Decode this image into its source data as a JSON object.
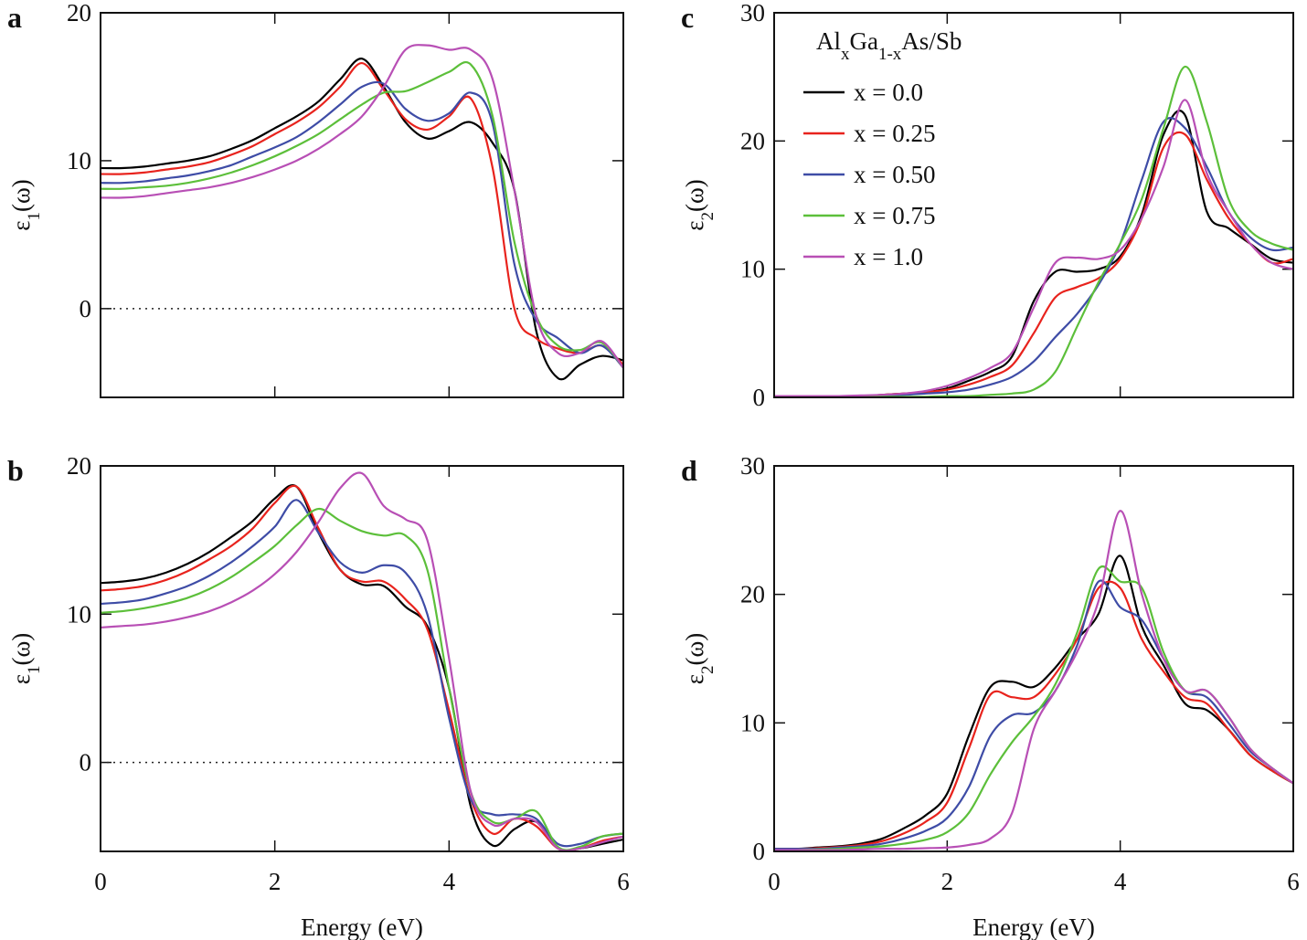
{
  "chart_data": [
    {
      "type": "line",
      "panel": "a",
      "y_label": [
        "ε",
        "1",
        "(ω)"
      ],
      "x": [
        0,
        0.25,
        0.5,
        0.75,
        1,
        1.25,
        1.5,
        1.75,
        2,
        2.25,
        2.5,
        2.75,
        3,
        3.25,
        3.5,
        3.75,
        4,
        4.25,
        4.5,
        4.75,
        5,
        5.25,
        5.5,
        5.75,
        6
      ],
      "xlim": [
        0,
        6
      ],
      "xticks": [
        0,
        2,
        4,
        6
      ],
      "xtick_labels": false,
      "ylim": [
        -6,
        20
      ],
      "yticks": [
        0,
        10,
        20
      ],
      "zero_line": true,
      "legend": false,
      "series": [
        {
          "name": "x = 0.0",
          "color": "#000000",
          "values": [
            9.5,
            9.5,
            9.6,
            9.8,
            10.0,
            10.3,
            10.8,
            11.4,
            12.2,
            13.0,
            14.0,
            15.5,
            16.9,
            15.0,
            12.6,
            11.5,
            12.0,
            12.6,
            11.2,
            8.0,
            -1.5,
            -4.7,
            -3.8,
            -3.2,
            -3.5
          ]
        },
        {
          "name": "x = 0.25",
          "color": "#e8231d",
          "values": [
            9.1,
            9.1,
            9.2,
            9.4,
            9.6,
            9.9,
            10.4,
            11.0,
            11.8,
            12.6,
            13.6,
            15.0,
            16.6,
            14.8,
            12.8,
            12.1,
            13.0,
            14.2,
            9.5,
            0.0,
            -2.0,
            -2.7,
            -3.0,
            -2.5,
            -3.8
          ]
        },
        {
          "name": "x = 0.50",
          "color": "#3e4ca6",
          "values": [
            8.5,
            8.5,
            8.6,
            8.8,
            9.0,
            9.3,
            9.7,
            10.3,
            10.9,
            11.6,
            12.6,
            13.8,
            15.0,
            15.2,
            13.5,
            12.7,
            13.2,
            14.6,
            12.5,
            3.0,
            -0.8,
            -2.0,
            -3.0,
            -2.5,
            -4.0
          ]
        },
        {
          "name": "x = 0.75",
          "color": "#5cbf3a",
          "values": [
            8.1,
            8.1,
            8.2,
            8.3,
            8.5,
            8.8,
            9.2,
            9.7,
            10.3,
            11.0,
            11.8,
            12.8,
            13.8,
            14.6,
            14.7,
            15.3,
            16.0,
            16.5,
            13.0,
            4.5,
            -0.5,
            -2.5,
            -2.8,
            -2.3,
            -4.0
          ]
        },
        {
          "name": "x = 1.0",
          "color": "#b84fb5",
          "values": [
            7.5,
            7.5,
            7.6,
            7.8,
            8.0,
            8.2,
            8.5,
            8.9,
            9.4,
            10.0,
            10.8,
            11.8,
            13.0,
            15.0,
            17.5,
            17.8,
            17.5,
            17.5,
            15.5,
            8.0,
            -0.5,
            -3.0,
            -3.0,
            -2.2,
            -4.0
          ]
        }
      ]
    },
    {
      "type": "line",
      "panel": "b",
      "y_label": [
        "ε",
        "1",
        "(ω)"
      ],
      "x_label": "Energy (eV)",
      "x": [
        0,
        0.25,
        0.5,
        0.75,
        1,
        1.25,
        1.5,
        1.75,
        2,
        2.25,
        2.5,
        2.75,
        3,
        3.25,
        3.5,
        3.75,
        4,
        4.25,
        4.5,
        4.75,
        5,
        5.25,
        5.5,
        5.75,
        6
      ],
      "xlim": [
        0,
        6
      ],
      "xticks": [
        0,
        2,
        4,
        6
      ],
      "ylim": [
        -6,
        20
      ],
      "yticks": [
        0,
        10,
        20
      ],
      "zero_line": true,
      "legend": false,
      "series": [
        {
          "name": "x = 0.0",
          "color": "#000000",
          "values": [
            12.1,
            12.2,
            12.4,
            12.8,
            13.4,
            14.2,
            15.2,
            16.3,
            17.8,
            18.6,
            15.5,
            13.0,
            12.0,
            11.9,
            10.5,
            9.2,
            5.0,
            -3.0,
            -5.6,
            -4.5,
            -4.0,
            -5.8,
            -5.8,
            -5.5,
            -5.2
          ]
        },
        {
          "name": "x = 0.25",
          "color": "#e8231d",
          "values": [
            11.6,
            11.7,
            11.9,
            12.3,
            12.9,
            13.7,
            14.6,
            15.8,
            17.5,
            18.6,
            15.8,
            13.0,
            12.2,
            12.2,
            11.0,
            9.0,
            3.5,
            -2.5,
            -4.8,
            -3.8,
            -4.3,
            -5.8,
            -5.8,
            -5.3,
            -5.0
          ]
        },
        {
          "name": "x = 0.50",
          "color": "#3e4ca6",
          "values": [
            10.7,
            10.8,
            11.0,
            11.4,
            11.9,
            12.6,
            13.5,
            14.6,
            15.9,
            17.7,
            15.5,
            13.5,
            12.8,
            13.3,
            12.8,
            10.0,
            3.0,
            -2.5,
            -3.5,
            -3.5,
            -3.8,
            -5.5,
            -5.5,
            -5.0,
            -4.8
          ]
        },
        {
          "name": "x = 0.75",
          "color": "#5cbf3a",
          "values": [
            10.1,
            10.2,
            10.4,
            10.7,
            11.1,
            11.7,
            12.5,
            13.5,
            14.6,
            16.0,
            17.1,
            16.3,
            15.6,
            15.3,
            15.3,
            13.0,
            5.0,
            -2.0,
            -4.0,
            -3.8,
            -3.3,
            -5.7,
            -5.7,
            -5.0,
            -4.8
          ]
        },
        {
          "name": "x = 1.0",
          "color": "#b84fb5",
          "values": [
            9.1,
            9.2,
            9.3,
            9.5,
            9.8,
            10.2,
            10.8,
            11.6,
            12.7,
            14.2,
            16.2,
            18.5,
            19.5,
            17.3,
            16.4,
            15.0,
            7.0,
            -2.0,
            -4.2,
            -3.8,
            -4.0,
            -5.8,
            -5.8,
            -5.4,
            -5.0
          ]
        }
      ]
    },
    {
      "type": "line",
      "panel": "c",
      "y_label": [
        "ε",
        "2",
        "(ω)"
      ],
      "x": [
        0,
        0.25,
        0.5,
        0.75,
        1,
        1.25,
        1.5,
        1.75,
        2,
        2.25,
        2.5,
        2.75,
        3,
        3.25,
        3.5,
        3.75,
        4,
        4.25,
        4.5,
        4.75,
        5,
        5.25,
        5.5,
        5.75,
        6
      ],
      "xlim": [
        0,
        6
      ],
      "xticks": [
        0,
        2,
        4,
        6
      ],
      "xtick_labels": false,
      "ylim": [
        0,
        30
      ],
      "yticks": [
        0,
        10,
        20,
        30
      ],
      "legend": true,
      "legend_corner": "upper left",
      "legend_title": [
        "Al",
        "x",
        "Ga",
        "1-x",
        "As/Sb"
      ],
      "series": [
        {
          "name": "x = 0.0",
          "color": "#000000",
          "values": [
            0.1,
            0.1,
            0.1,
            0.1,
            0.1,
            0.2,
            0.3,
            0.4,
            0.7,
            1.3,
            2.0,
            3.2,
            7.5,
            9.8,
            9.8,
            10.0,
            11.0,
            14.3,
            20.5,
            22.0,
            14.5,
            13.2,
            12.0,
            10.8,
            10.5
          ]
        },
        {
          "name": "x = 0.25",
          "color": "#e8231d",
          "values": [
            0.1,
            0.1,
            0.1,
            0.1,
            0.1,
            0.2,
            0.3,
            0.4,
            0.6,
            1.0,
            1.6,
            2.5,
            5.0,
            7.8,
            8.6,
            9.3,
            10.8,
            14.0,
            19.5,
            20.5,
            17.0,
            14.0,
            12.0,
            10.5,
            10.8
          ]
        },
        {
          "name": "x = 0.50",
          "color": "#3e4ca6",
          "values": [
            0.1,
            0.1,
            0.1,
            0.1,
            0.1,
            0.15,
            0.2,
            0.3,
            0.4,
            0.6,
            1.0,
            1.6,
            2.8,
            4.7,
            6.5,
            8.8,
            12.0,
            17.0,
            21.5,
            21.0,
            18.0,
            14.5,
            12.5,
            11.5,
            11.7
          ]
        },
        {
          "name": "x = 0.75",
          "color": "#5cbf3a",
          "values": [
            0.05,
            0.05,
            0.05,
            0.05,
            0.05,
            0.05,
            0.05,
            0.05,
            0.1,
            0.1,
            0.2,
            0.3,
            0.6,
            2.0,
            5.5,
            9.0,
            12.0,
            15.5,
            21.0,
            25.8,
            21.5,
            15.5,
            13.0,
            12.0,
            11.5
          ]
        },
        {
          "name": "x = 1.0",
          "color": "#b84fb5",
          "values": [
            0.1,
            0.1,
            0.1,
            0.1,
            0.15,
            0.2,
            0.3,
            0.5,
            0.9,
            1.5,
            2.3,
            3.5,
            7.0,
            10.5,
            10.9,
            10.8,
            11.5,
            14.0,
            18.0,
            23.2,
            17.5,
            14.5,
            12.0,
            10.5,
            10.0
          ]
        }
      ]
    },
    {
      "type": "line",
      "panel": "d",
      "y_label": [
        "ε",
        "2",
        "(ω)"
      ],
      "x_label": "Energy (eV)",
      "x": [
        0,
        0.25,
        0.5,
        0.75,
        1,
        1.25,
        1.5,
        1.75,
        2,
        2.25,
        2.5,
        2.75,
        3,
        3.25,
        3.5,
        3.75,
        4,
        4.25,
        4.5,
        4.75,
        5,
        5.25,
        5.5,
        5.75,
        6
      ],
      "xlim": [
        0,
        6
      ],
      "xticks": [
        0,
        2,
        4,
        6
      ],
      "ylim": [
        0,
        30
      ],
      "yticks": [
        0,
        10,
        20,
        30
      ],
      "legend": false,
      "series": [
        {
          "name": "x = 0.0",
          "color": "#000000",
          "values": [
            0.2,
            0.2,
            0.3,
            0.4,
            0.6,
            1.0,
            1.8,
            2.8,
            4.5,
            9.0,
            12.8,
            13.2,
            12.8,
            14.3,
            16.5,
            18.5,
            23.0,
            17.5,
            14.5,
            11.5,
            11.0,
            9.5,
            7.5,
            6.3,
            5.3
          ]
        },
        {
          "name": "x = 0.25",
          "color": "#e8231d",
          "values": [
            0.2,
            0.2,
            0.25,
            0.35,
            0.5,
            0.8,
            1.4,
            2.3,
            3.8,
            8.0,
            12.2,
            12.0,
            12.0,
            13.8,
            16.5,
            20.5,
            20.5,
            16.5,
            14.0,
            12.0,
            11.5,
            9.5,
            7.5,
            6.3,
            5.3
          ]
        },
        {
          "name": "x = 0.50",
          "color": "#3e4ca6",
          "values": [
            0.2,
            0.2,
            0.2,
            0.3,
            0.4,
            0.6,
            1.0,
            1.6,
            2.6,
            5.0,
            9.0,
            10.6,
            10.8,
            12.5,
            16.0,
            21.0,
            19.0,
            18.0,
            15.0,
            12.5,
            12.0,
            10.0,
            7.8,
            6.5,
            5.3
          ]
        },
        {
          "name": "x = 0.75",
          "color": "#5cbf3a",
          "values": [
            0.1,
            0.1,
            0.15,
            0.2,
            0.3,
            0.4,
            0.6,
            0.9,
            1.5,
            3.0,
            6.0,
            8.5,
            10.5,
            13.0,
            17.0,
            22.0,
            21.0,
            20.5,
            15.5,
            12.5,
            12.5,
            10.5,
            8.0,
            6.5,
            5.3
          ]
        },
        {
          "name": "x = 1.0",
          "color": "#b84fb5",
          "values": [
            0.1,
            0.1,
            0.1,
            0.1,
            0.15,
            0.2,
            0.2,
            0.25,
            0.3,
            0.5,
            1.0,
            3.0,
            9.5,
            12.5,
            15.5,
            19.5,
            26.5,
            20.0,
            15.0,
            12.5,
            12.5,
            10.5,
            8.0,
            6.5,
            5.3
          ]
        }
      ]
    }
  ]
}
